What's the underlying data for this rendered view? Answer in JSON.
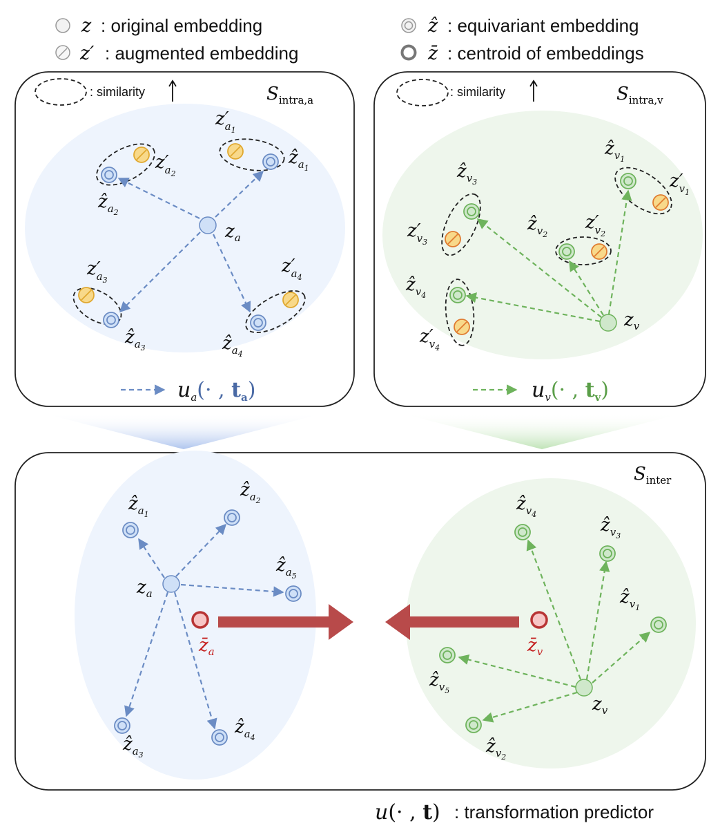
{
  "legend": {
    "original": {
      "symbol": "z",
      "text": ": original embedding"
    },
    "augmented": {
      "symbol": "z′",
      "text": ": augmented embedding"
    },
    "equivariant": {
      "symbol": "ẑ",
      "text": ": equivariant embedding"
    },
    "centroid": {
      "symbol": "z̄",
      "text": ": centroid of embeddings"
    }
  },
  "panels": {
    "intra_a": {
      "title_main": "S",
      "title_sub": "intra,a",
      "similarity_text": ": similarity",
      "predictor": {
        "func": "u",
        "sub": "a",
        "args": "(· , ",
        "bold": "t",
        "bold_sub": "a",
        "close": ")"
      }
    },
    "intra_v": {
      "title_main": "S",
      "title_sub": "intra,v",
      "similarity_text": ": similarity",
      "predictor": {
        "func": "u",
        "sub": "v",
        "args": "(· , ",
        "bold": "t",
        "bold_sub": "v",
        "close": ")"
      }
    },
    "inter": {
      "title_main": "S",
      "title_sub": "inter"
    }
  },
  "labels": {
    "base_z": "z",
    "hat_z": "ẑ",
    "prime_z": "z′",
    "bar_z": "z̄",
    "sub_a": "a",
    "sub_v": "v",
    "i1": "1",
    "i2": "2",
    "i3": "3",
    "i4": "4",
    "i5": "5"
  },
  "footer": {
    "func": "u",
    "args": "(· , ",
    "bold": "t",
    "close": ")",
    "text": ": transformation predictor"
  },
  "colors": {
    "audio_fill": "#cfe0f7",
    "audio_stroke": "#6b8cc4",
    "audio_region": "#eef4fd",
    "visual_fill": "#cfe8cb",
    "visual_stroke": "#6eb35c",
    "visual_region": "#eef6ec",
    "aug_fill": "#f8d98a",
    "aug_stroke": "#e0a830",
    "centroid_fill": "#f7c6c6",
    "centroid_stroke": "#b83434",
    "centroid_text": "#c42020",
    "arrow_big": "#b84a4a",
    "predictor_a": "#6b8cc4",
    "predictor_v": "#6eb35c"
  }
}
